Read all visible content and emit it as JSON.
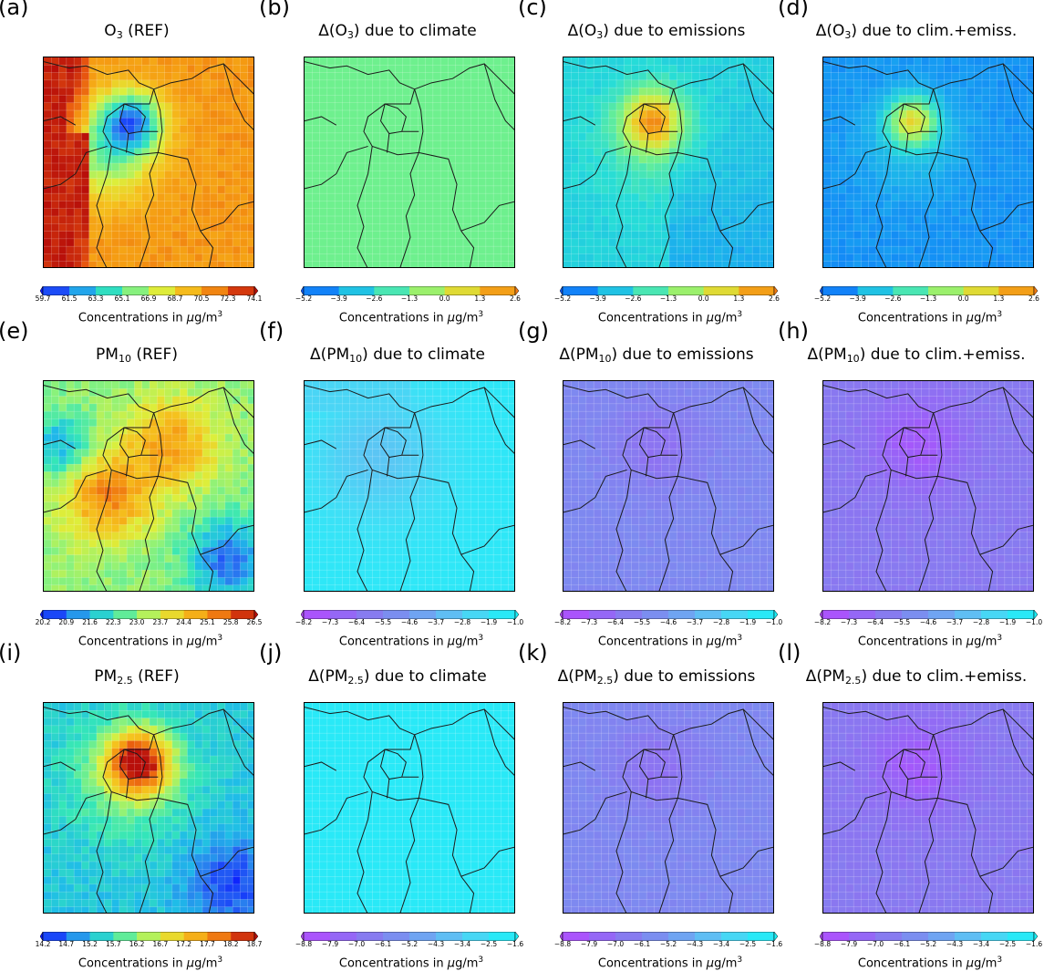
{
  "colors": {
    "ref_ramp": [
      "#0a1aff",
      "#2a73f0",
      "#1fbce8",
      "#34e6b8",
      "#8cf27a",
      "#dcef3c",
      "#f5c31e",
      "#f59a12",
      "#e9580f",
      "#b80f0a"
    ],
    "o3_delta_ramp": [
      "#0a5cff",
      "#19a8f0",
      "#26dcd8",
      "#6ef08e",
      "#c8f04a",
      "#f5c31e",
      "#f07a12"
    ],
    "pm_delta_ramp": [
      "#b64bff",
      "#9a60f8",
      "#8a77f0",
      "#7c8cf0",
      "#6ea6f2",
      "#5cc4f4",
      "#3ee0f6",
      "#19f0f8"
    ],
    "border": "#1a1a1a",
    "grid": "#ffffff"
  },
  "panels": [
    {
      "label": "(a)",
      "title_main": "O",
      "title_sub": "3",
      "title_rest": " (REF)",
      "delta": false,
      "ticks": [
        "59.7",
        "61.5",
        "63.3",
        "65.1",
        "66.9",
        "68.7",
        "70.5",
        "72.3",
        "74.1"
      ],
      "colorbar": "ref",
      "cb_label": "Concentrations in",
      "cb_unit_mu": "μ",
      "cb_unit": "g/m",
      "cb_sup": "3",
      "field": "o3ref"
    },
    {
      "label": "(b)",
      "title_main": "Δ(O",
      "title_sub": "3",
      "title_rest": ") due to climate",
      "delta": true,
      "ticks": [
        "-5.2",
        "-3.9",
        "-2.6",
        "-1.3",
        "0.0",
        "1.3",
        "2.6"
      ],
      "colorbar": "o3d",
      "cb_label": "Concentrations in",
      "cb_unit_mu": "μ",
      "cb_unit": "g/m",
      "cb_sup": "3",
      "field": "flat_green"
    },
    {
      "label": "(c)",
      "title_main": "Δ(O",
      "title_sub": "3",
      "title_rest": ") due to emissions",
      "delta": true,
      "ticks": [
        "-5.2",
        "-3.9",
        "-2.6",
        "-1.3",
        "0.0",
        "1.3",
        "2.6"
      ],
      "colorbar": "o3d",
      "cb_label": "Concentrations in",
      "cb_unit_mu": "μ",
      "cb_unit": "g/m",
      "cb_sup": "3",
      "field": "o3emis"
    },
    {
      "label": "(d)",
      "title_main": "Δ(O",
      "title_sub": "3",
      "title_rest": ") due to clim.+emiss.",
      "delta": true,
      "ticks": [
        "-5.2",
        "-3.9",
        "-2.6",
        "-1.3",
        "0.0",
        "1.3",
        "2.6"
      ],
      "colorbar": "o3d",
      "cb_label": "Concentrations in",
      "cb_unit_mu": "μ",
      "cb_unit": "g/m",
      "cb_sup": "3",
      "field": "o3both"
    },
    {
      "label": "(e)",
      "title_main": "PM",
      "title_sub": "10",
      "title_rest": " (REF)",
      "delta": false,
      "ticks": [
        "20.2",
        "20.9",
        "21.6",
        "22.3",
        "23.0",
        "23.7",
        "24.4",
        "25.1",
        "25.8",
        "26.5"
      ],
      "colorbar": "ref",
      "cb_label": "Concentrations in",
      "cb_unit_mu": "μ",
      "cb_unit": "g/m",
      "cb_sup": "3",
      "field": "pm10ref"
    },
    {
      "label": "(f)",
      "title_main": "Δ(PM",
      "title_sub": "10",
      "title_rest": ") due to climate",
      "delta": true,
      "ticks": [
        "-8.2",
        "-7.3",
        "-6.4",
        "-5.5",
        "-4.6",
        "-3.7",
        "-2.8",
        "-1.9",
        "-1.0"
      ],
      "colorbar": "pmd",
      "cb_label": "Concentrations in",
      "cb_unit_mu": "μ",
      "cb_unit": "g/m",
      "cb_sup": "3",
      "field": "pm10clim"
    },
    {
      "label": "(g)",
      "title_main": "Δ(PM",
      "title_sub": "10",
      "title_rest": ") due to emissions",
      "delta": true,
      "ticks": [
        "-8.2",
        "-7.3",
        "-6.4",
        "-5.5",
        "-4.6",
        "-3.7",
        "-2.8",
        "-1.9",
        "-1.0"
      ],
      "colorbar": "pmd",
      "cb_label": "Concentrations in",
      "cb_unit_mu": "μ",
      "cb_unit": "g/m",
      "cb_sup": "3",
      "field": "pmemis"
    },
    {
      "label": "(h)",
      "title_main": "Δ(PM",
      "title_sub": "10",
      "title_rest": ") due to clim.+emiss.",
      "delta": true,
      "ticks": [
        "-8.2",
        "-7.3",
        "-6.4",
        "-5.5",
        "-4.6",
        "-3.7",
        "-2.8",
        "-1.9",
        "-1.0"
      ],
      "colorbar": "pmd",
      "cb_label": "Concentrations in",
      "cb_unit_mu": "μ",
      "cb_unit": "g/m",
      "cb_sup": "3",
      "field": "pmboth"
    },
    {
      "label": "(i)",
      "title_main": "PM",
      "title_sub": "2.5",
      "title_rest": " (REF)",
      "delta": false,
      "ticks": [
        "14.2",
        "14.7",
        "15.2",
        "15.7",
        "16.2",
        "16.7",
        "17.2",
        "17.7",
        "18.2",
        "18.7"
      ],
      "colorbar": "ref",
      "cb_label": "Concentrations in",
      "cb_unit_mu": "μ",
      "cb_unit": "g/m",
      "cb_sup": "3",
      "field": "pm25ref"
    },
    {
      "label": "(j)",
      "title_main": "Δ(PM",
      "title_sub": "2.5",
      "title_rest": ") due to climate",
      "delta": true,
      "ticks": [
        "-8.8",
        "-7.9",
        "-7.0",
        "-6.1",
        "-5.2",
        "-4.3",
        "-3.4",
        "-2.5",
        "-1.6"
      ],
      "colorbar": "pmd",
      "cb_label": "Concentrations in",
      "cb_unit_mu": "μ",
      "cb_unit": "g/m",
      "cb_sup": "3",
      "field": "flat_cyan"
    },
    {
      "label": "(k)",
      "title_main": "Δ(PM",
      "title_sub": "2.5",
      "title_rest": ") due to emissions",
      "delta": true,
      "ticks": [
        "-8.8",
        "-7.9",
        "-7.0",
        "-6.1",
        "-5.2",
        "-4.3",
        "-3.4",
        "-2.5",
        "-1.6"
      ],
      "colorbar": "pmd",
      "cb_label": "Concentrations in",
      "cb_unit_mu": "μ",
      "cb_unit": "g/m",
      "cb_sup": "3",
      "field": "pmemis"
    },
    {
      "label": "(l)",
      "title_main": "Δ(PM",
      "title_sub": "2.5",
      "title_rest": ") due to clim.+emiss.",
      "delta": true,
      "ticks": [
        "-8.8",
        "-7.9",
        "-7.0",
        "-6.1",
        "-5.2",
        "-4.3",
        "-3.4",
        "-2.5",
        "-1.6"
      ],
      "colorbar": "pmd",
      "cb_label": "Concentrations in",
      "cb_unit_mu": "μ",
      "cb_unit": "g/m",
      "cb_sup": "3",
      "field": "pmboth"
    }
  ],
  "chart_data": [
    {
      "type": "heatmap",
      "panel": "(a)",
      "title": "O3 (REF)",
      "colorbar_label": "Concentrations in μg/m3",
      "colorbar_range": [
        59.7,
        74.1
      ],
      "colorbar_ticks": [
        59.7,
        61.5,
        63.3,
        65.1,
        66.9,
        68.7,
        70.5,
        72.3,
        74.1
      ],
      "extend": "both"
    },
    {
      "type": "heatmap",
      "panel": "(b)",
      "title": "Δ(O3) due to climate",
      "colorbar_label": "Concentrations in μg/m3",
      "colorbar_range": [
        -5.2,
        2.6
      ],
      "colorbar_ticks": [
        -5.2,
        -3.9,
        -2.6,
        -1.3,
        0.0,
        1.3,
        2.6
      ],
      "extend": "both"
    },
    {
      "type": "heatmap",
      "panel": "(c)",
      "title": "Δ(O3) due to emissions",
      "colorbar_label": "Concentrations in μg/m3",
      "colorbar_range": [
        -5.2,
        2.6
      ],
      "colorbar_ticks": [
        -5.2,
        -3.9,
        -2.6,
        -1.3,
        0.0,
        1.3,
        2.6
      ],
      "extend": "both"
    },
    {
      "type": "heatmap",
      "panel": "(d)",
      "title": "Δ(O3) due to clim.+emiss.",
      "colorbar_label": "Concentrations in μg/m3",
      "colorbar_range": [
        -5.2,
        2.6
      ],
      "colorbar_ticks": [
        -5.2,
        -3.9,
        -2.6,
        -1.3,
        0.0,
        1.3,
        2.6
      ],
      "extend": "both"
    },
    {
      "type": "heatmap",
      "panel": "(e)",
      "title": "PM10 (REF)",
      "colorbar_label": "Concentrations in μg/m3",
      "colorbar_range": [
        20.2,
        26.5
      ],
      "colorbar_ticks": [
        20.2,
        20.9,
        21.6,
        22.3,
        23.0,
        23.7,
        24.4,
        25.1,
        25.8,
        26.5
      ],
      "extend": "both"
    },
    {
      "type": "heatmap",
      "panel": "(f)",
      "title": "Δ(PM10) due to climate",
      "colorbar_label": "Concentrations in μg/m3",
      "colorbar_range": [
        -8.2,
        -1.0
      ],
      "colorbar_ticks": [
        -8.2,
        -7.3,
        -6.4,
        -5.5,
        -4.6,
        -3.7,
        -2.8,
        -1.9,
        -1.0
      ],
      "extend": "both"
    },
    {
      "type": "heatmap",
      "panel": "(g)",
      "title": "Δ(PM10) due to emissions",
      "colorbar_label": "Concentrations in μg/m3",
      "colorbar_range": [
        -8.2,
        -1.0
      ],
      "colorbar_ticks": [
        -8.2,
        -7.3,
        -6.4,
        -5.5,
        -4.6,
        -3.7,
        -2.8,
        -1.9,
        -1.0
      ],
      "extend": "both"
    },
    {
      "type": "heatmap",
      "panel": "(h)",
      "title": "Δ(PM10) due to clim.+emiss.",
      "colorbar_label": "Concentrations in μg/m3",
      "colorbar_range": [
        -8.2,
        -1.0
      ],
      "colorbar_ticks": [
        -8.2,
        -7.3,
        -6.4,
        -5.5,
        -4.6,
        -3.7,
        -2.8,
        -1.9,
        -1.0
      ],
      "extend": "both"
    },
    {
      "type": "heatmap",
      "panel": "(i)",
      "title": "PM2.5 (REF)",
      "colorbar_label": "Concentrations in μg/m3",
      "colorbar_range": [
        14.2,
        18.7
      ],
      "colorbar_ticks": [
        14.2,
        14.7,
        15.2,
        15.7,
        16.2,
        16.7,
        17.2,
        17.7,
        18.2,
        18.7
      ],
      "extend": "both"
    },
    {
      "type": "heatmap",
      "panel": "(j)",
      "title": "Δ(PM2.5) due to climate",
      "colorbar_label": "Concentrations in μg/m3",
      "colorbar_range": [
        -8.8,
        -1.6
      ],
      "colorbar_ticks": [
        -8.8,
        -7.9,
        -7.0,
        -6.1,
        -5.2,
        -4.3,
        -3.4,
        -2.5,
        -1.6
      ],
      "extend": "both"
    },
    {
      "type": "heatmap",
      "panel": "(k)",
      "title": "Δ(PM2.5) due to emissions",
      "colorbar_label": "Concentrations in μg/m3",
      "colorbar_range": [
        -8.8,
        -1.6
      ],
      "colorbar_ticks": [
        -8.8,
        -7.9,
        -7.0,
        -6.1,
        -5.2,
        -4.3,
        -3.4,
        -2.5,
        -1.6
      ],
      "extend": "both"
    },
    {
      "type": "heatmap",
      "panel": "(l)",
      "title": "Δ(PM2.5) due to clim.+emiss.",
      "colorbar_label": "Concentrations in μg/m3",
      "colorbar_range": [
        -8.8,
        -1.6
      ],
      "colorbar_ticks": [
        -8.8,
        -7.9,
        -7.0,
        -6.1,
        -5.2,
        -4.3,
        -3.4,
        -2.5,
        -1.6
      ],
      "extend": "both"
    }
  ]
}
